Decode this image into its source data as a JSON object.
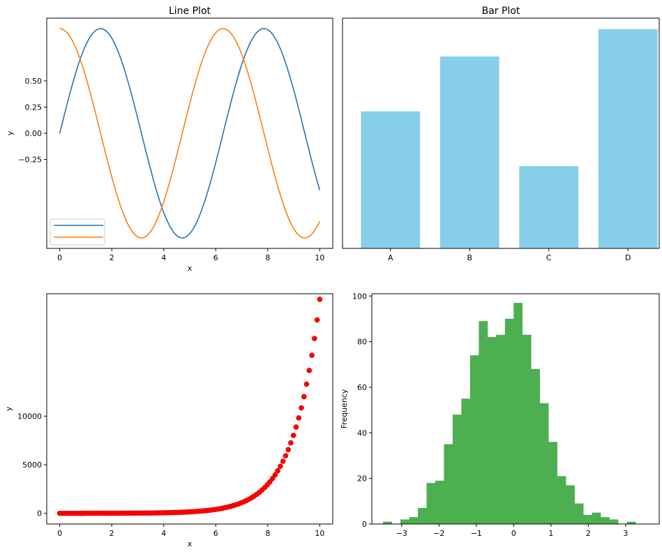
{
  "chart_data": [
    {
      "type": "line",
      "title": "Line Plot",
      "xlabel": "x",
      "ylabel": "y",
      "xlim": [
        -0.5,
        10.5
      ],
      "ylim": [
        -1.1,
        1.1
      ],
      "xticks": [
        0,
        2,
        4,
        6,
        8,
        10
      ],
      "yticks": [
        0.5,
        0.25,
        0.0,
        -0.25
      ],
      "ytick_labels": [
        "0.50",
        "0.25",
        "0.00",
        "−0.25"
      ],
      "x": [
        0,
        0.5,
        1,
        1.5,
        2,
        2.5,
        3,
        3.5,
        4,
        4.5,
        5,
        5.5,
        6,
        6.5,
        7,
        7.5,
        8,
        8.5,
        9,
        9.5,
        10
      ],
      "series": [
        {
          "color": "#1f77b4",
          "values": [
            0.0,
            0.479,
            0.841,
            0.997,
            0.909,
            0.598,
            0.141,
            -0.351,
            -0.757,
            -0.978,
            -0.959,
            -0.706,
            -0.279,
            0.215,
            0.657,
            0.938,
            0.989,
            0.798,
            0.412,
            -0.075,
            -0.544
          ]
        },
        {
          "color": "#ff7f0e",
          "values": [
            1.0,
            0.878,
            0.54,
            0.071,
            -0.416,
            -0.801,
            -0.99,
            -0.936,
            -0.654,
            -0.211,
            0.284,
            0.709,
            0.96,
            0.977,
            0.754,
            0.347,
            -0.146,
            -0.602,
            -0.911,
            -0.997,
            -0.839
          ]
        }
      ],
      "legend": "lower-left",
      "grid": false
    },
    {
      "type": "bar",
      "title": "Bar Plot",
      "categories": [
        "A",
        "B",
        "C",
        "D"
      ],
      "values": [
        25,
        35,
        15,
        40
      ],
      "ylim": [
        0,
        42
      ],
      "color": "#87ceeb",
      "grid": false
    },
    {
      "type": "scatter",
      "xlabel": "x",
      "ylabel": "y",
      "xlim": [
        -0.5,
        10.5
      ],
      "ylim": [
        -1100,
        22600
      ],
      "xticks": [
        0,
        2,
        4,
        6,
        8,
        10
      ],
      "yticks": [
        0,
        5000,
        10000
      ],
      "point_count": 100,
      "function": "exp(x)",
      "color": "#ff0000",
      "grid": false
    },
    {
      "type": "bar",
      "subtype": "histogram",
      "ylabel": "Frequency",
      "xlim": [
        -3.8,
        3.9
      ],
      "ylim": [
        0,
        101
      ],
      "xticks": [
        -3,
        -2,
        -1,
        0,
        1,
        2,
        3
      ],
      "xtick_labels": [
        "−3",
        "−2",
        "−1",
        "0",
        "1",
        "2",
        "3"
      ],
      "yticks": [
        0,
        20,
        40,
        60,
        80,
        100
      ],
      "bin_start": -3.5,
      "bin_width": 0.2333,
      "values": [
        1,
        0,
        2,
        3,
        7,
        18,
        19,
        35,
        48,
        55,
        74,
        89,
        82,
        83,
        90,
        97,
        83,
        68,
        53,
        36,
        21,
        17,
        9,
        4,
        5,
        3,
        2,
        0,
        1
      ],
      "color": "#4caf50",
      "grid": false
    }
  ]
}
